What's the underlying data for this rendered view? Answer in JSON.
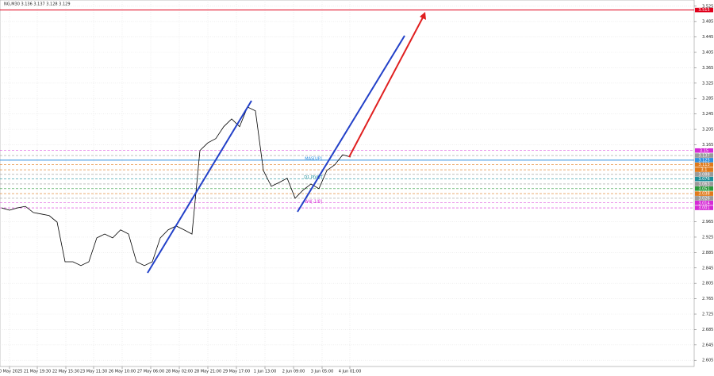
{
  "chart_data": {
    "type": "line",
    "title": "NG,M30  3.136 3.137 3.128 3.129",
    "series": [
      {
        "color": "#000000",
        "values": [
          3.001,
          2.995,
          3.001,
          3.005,
          2.989,
          2.985,
          2.981,
          2.964,
          2.861,
          2.861,
          2.851,
          2.861,
          2.923,
          2.933,
          2.923,
          2.944,
          2.933,
          2.861,
          2.851,
          2.861,
          2.923,
          2.944,
          2.954,
          2.944,
          2.933,
          3.15,
          3.17,
          3.181,
          3.212,
          3.232,
          3.212,
          3.263,
          3.253,
          3.098,
          3.057,
          3.067,
          3.078,
          3.026,
          3.047,
          3.063,
          3.051,
          3.098,
          3.113,
          3.139,
          3.133
        ]
      }
    ],
    "xlim": [
      -0.2,
      87.3
    ],
    "xticks": [
      {
        "value": 1,
        "label": "20 May 2025"
      },
      {
        "value": 4.5,
        "label": "21 May 19:30"
      },
      {
        "value": 8.1,
        "label": "22 May 15:30"
      },
      {
        "value": 11.6,
        "label": "23 May 11:30"
      },
      {
        "value": 15.2,
        "label": "26 May 10:00"
      },
      {
        "value": 18.8,
        "label": "27 May 06:00"
      },
      {
        "value": 22.4,
        "label": "28 May 02:00"
      },
      {
        "value": 26,
        "label": "28 May 21:00"
      },
      {
        "value": 29.6,
        "label": "29 May 17:00"
      },
      {
        "value": 33.2,
        "label": "1 Jun 13:00"
      },
      {
        "value": 36.8,
        "label": "2 Jun 09:00"
      },
      {
        "value": 40.4,
        "label": "3 Jun 05:00"
      },
      {
        "value": 43.9,
        "label": "4 Jun 01:00"
      }
    ],
    "ylim": [
      2.589,
      3.541
    ],
    "yticks": [
      3.525,
      3.485,
      3.445,
      3.405,
      3.365,
      3.325,
      3.285,
      3.245,
      3.205,
      3.165,
      2.965,
      2.925,
      2.885,
      2.845,
      2.805,
      2.765,
      2.725,
      2.685,
      2.645,
      2.605
    ],
    "grid": true,
    "levels": [
      {
        "value": 3.515,
        "color": "#e0001b",
        "line_style": "solid"
      },
      {
        "value": 3.15,
        "color": "#d62ad6",
        "line_style": "dashed"
      },
      {
        "value": 3.137,
        "color": "#9a9a9a",
        "line_style": "dashed"
      },
      {
        "value": 3.125,
        "color": "#2f8fe0",
        "line_style": "solid"
      },
      {
        "value": 3.113,
        "color": "#e07a1b",
        "line_style": "dashed"
      },
      {
        "value": 3.1,
        "color": "#e07a1b",
        "line_style": "dashed"
      },
      {
        "value": 3.088,
        "color": "#9a9a9a",
        "line_style": "dashed"
      },
      {
        "value": 3.076,
        "color": "#1b8f9a",
        "line_style": "dashed"
      },
      {
        "value": 3.063,
        "color": "#9a9a9a",
        "line_style": "dashed"
      },
      {
        "value": 3.051,
        "color": "#2a9a3a",
        "line_style": "dashed"
      },
      {
        "value": 3.038,
        "color": "#e07a1b",
        "line_style": "dashed"
      },
      {
        "value": 3.026,
        "color": "#9a9a9a",
        "line_style": "dashed"
      },
      {
        "value": 3.014,
        "color": "#d62ad6",
        "line_style": "dashed"
      },
      {
        "value": 3.001,
        "color": "#d62ad6",
        "line_style": "dashed"
      }
    ],
    "annotations": [
      {
        "text": "MAS[UP]",
        "value": 3.125,
        "color": "#2f8fe0"
      },
      {
        "text": "D1 PIVOT",
        "value": 3.076,
        "color": "#1b8f9a"
      },
      {
        "text": "W4[-1/8]",
        "value": 3.014,
        "color": "#d62ad6"
      }
    ]
  }
}
